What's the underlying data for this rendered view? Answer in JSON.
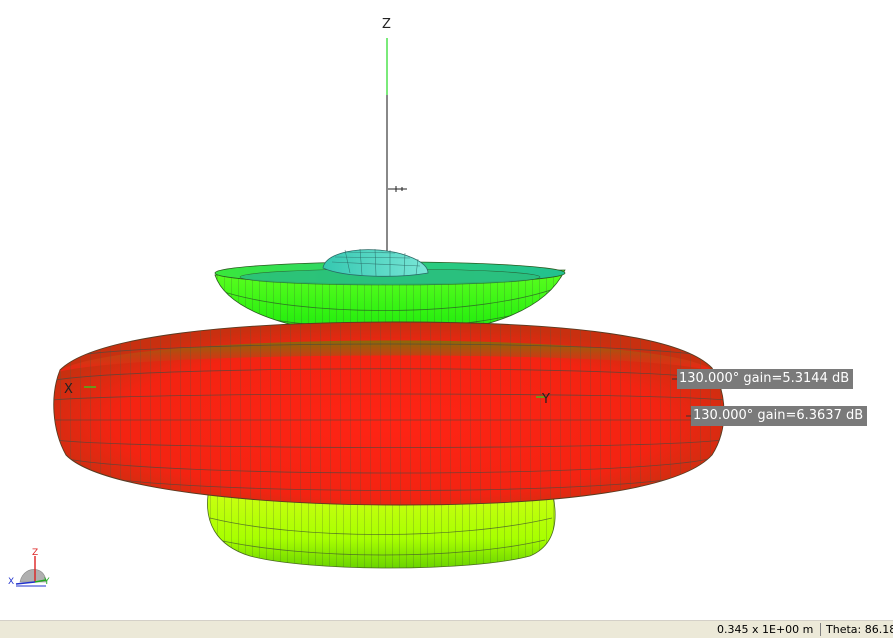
{
  "viewport": {
    "axes": {
      "z": "Z",
      "x": "X",
      "y": "Y"
    },
    "gain_tags": [
      {
        "text": "130.000° gain=5.3144 dB"
      },
      {
        "text": "130.000° gain=6.3637 dB"
      }
    ],
    "triad": {
      "z": "Z",
      "x": "X",
      "y": "Y"
    },
    "colors": {
      "main_lobe": "#ff2a1a",
      "upper_lobe": "#33ff22",
      "lower_lobe": "#b8ff10",
      "top_lobe": "#3cc8c0",
      "mesh": "#5a6a50"
    }
  },
  "statusbar": {
    "scale": "0.345 x 1E+00 m",
    "theta": "Theta: 86.18"
  }
}
